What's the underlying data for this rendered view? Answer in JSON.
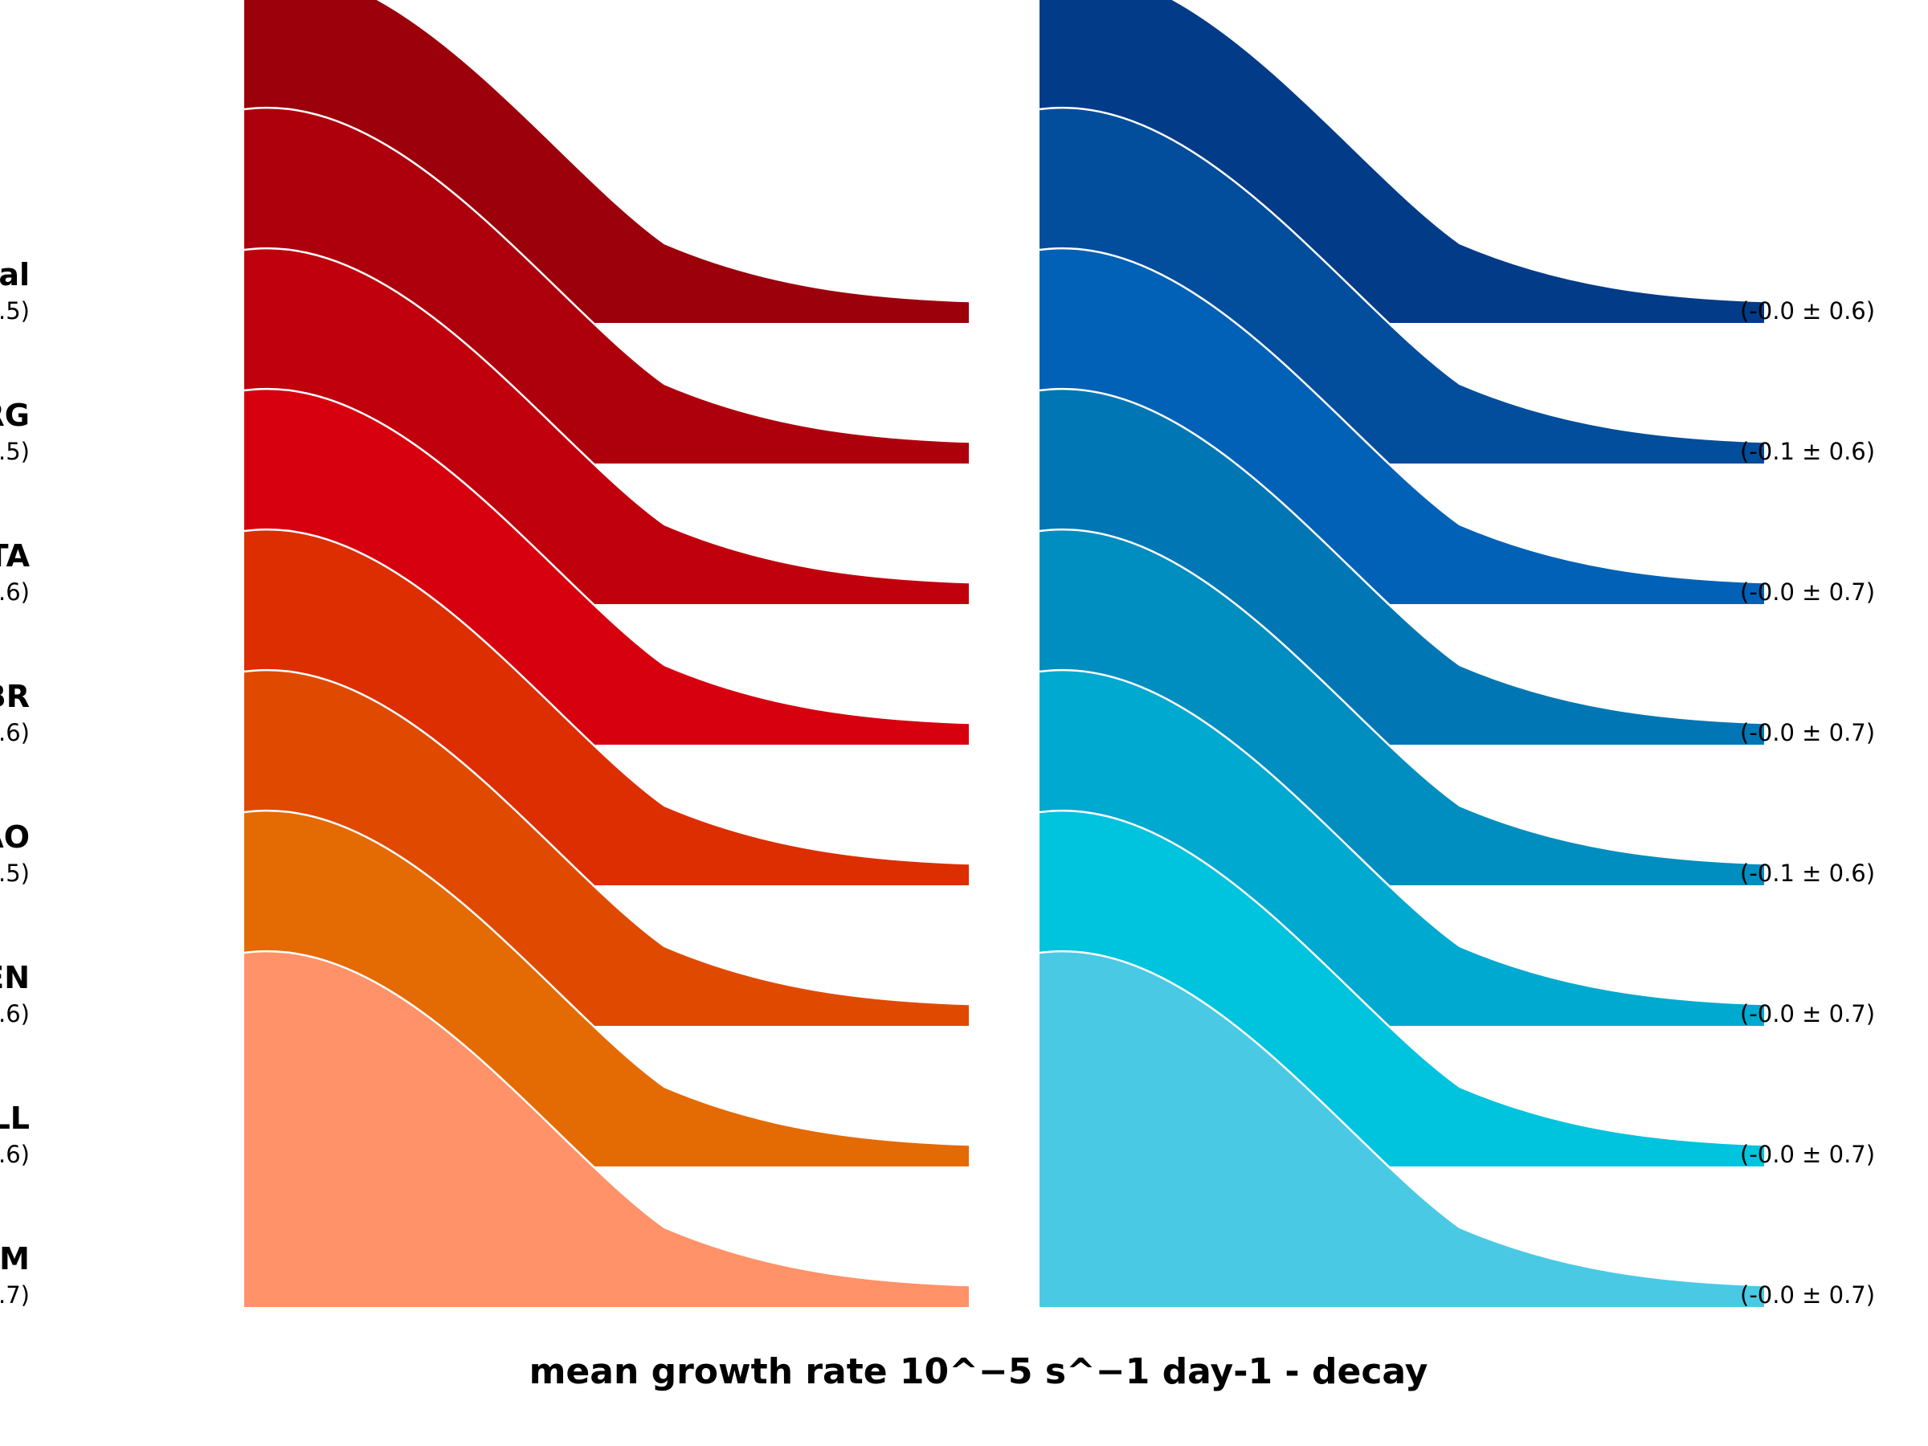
{
  "chart_data": {
    "type": "area",
    "xlabel": "mean growth rate 10^−5 s^−1 day-1 - decay",
    "panels": [
      {
        "name": "growth",
        "side": "left",
        "series": [
          {
            "label": "al",
            "stat": ".5)",
            "color": "#9b000b"
          },
          {
            "label": "RG",
            "stat": ".5)",
            "color": "#ae000c"
          },
          {
            "label": "TA",
            "stat": ".6)",
            "color": "#c0000d"
          },
          {
            "label": "BR",
            "stat": ".6)",
            "color": "#d7000f"
          },
          {
            "label": "AO",
            "stat": ".5)",
            "color": "#dc2e00"
          },
          {
            "label": "EN",
            "stat": ".6)",
            "color": "#e04a00"
          },
          {
            "label": "LL",
            "stat": ".6)",
            "color": "#e46a04"
          },
          {
            "label": "M",
            "stat": ".7)",
            "color": "#ff9268"
          }
        ]
      },
      {
        "name": "decay",
        "side": "right",
        "series": [
          {
            "stat": "(-0.0 ± 0.6)",
            "color": "#023b88"
          },
          {
            "stat": "(-0.1 ± 0.6)",
            "color": "#024d9c"
          },
          {
            "stat": "(-0.0 ± 0.7)",
            "color": "#0061b6"
          },
          {
            "stat": "(-0.0 ± 0.7)",
            "color": "#0077b4"
          },
          {
            "stat": "(-0.1 ± 0.6)",
            "color": "#008dc0"
          },
          {
            "stat": "(-0.0 ± 0.7)",
            "color": "#00a9cf"
          },
          {
            "stat": "(-0.0 ± 0.7)",
            "color": "#00c3dd"
          },
          {
            "stat": "(-0.0 ± 0.7)",
            "color": "#4ac9e5"
          }
        ]
      }
    ]
  }
}
